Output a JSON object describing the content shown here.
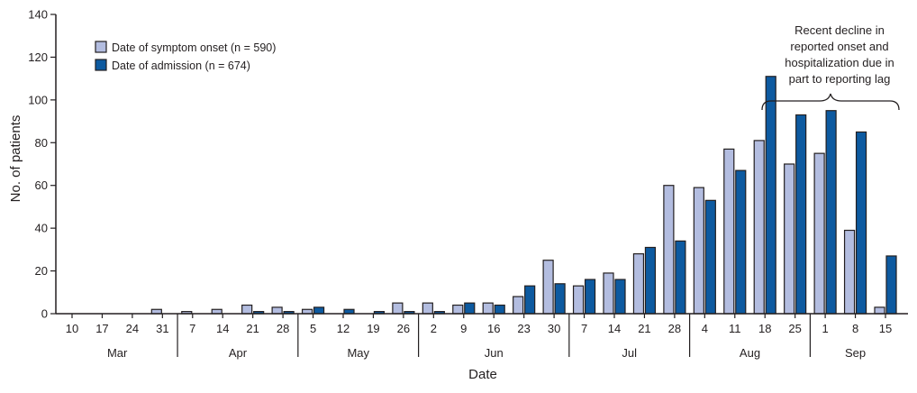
{
  "chart_data": {
    "type": "bar",
    "title": "",
    "xlabel": "Date",
    "ylabel": "No. of patients",
    "ylim": [
      0,
      140
    ],
    "yticks": [
      0,
      20,
      40,
      60,
      80,
      100,
      120,
      140
    ],
    "categories": [
      "10",
      "17",
      "24",
      "31",
      "7",
      "14",
      "21",
      "28",
      "5",
      "12",
      "19",
      "26",
      "2",
      "9",
      "16",
      "23",
      "30",
      "7",
      "14",
      "21",
      "28",
      "4",
      "11",
      "18",
      "25",
      "1",
      "8",
      "15"
    ],
    "month_groups": [
      {
        "label": "Mar",
        "count": 4
      },
      {
        "label": "Apr",
        "count": 4
      },
      {
        "label": "May",
        "count": 4
      },
      {
        "label": "Jun",
        "count": 5
      },
      {
        "label": "Jul",
        "count": 4
      },
      {
        "label": "Aug",
        "count": 4
      },
      {
        "label": "Sep",
        "count": 3
      }
    ],
    "series": [
      {
        "name": "Date of symptom onset",
        "n_label": "(n = 590)",
        "color": "#b3bde0",
        "values": [
          0,
          0,
          0,
          2,
          1,
          2,
          4,
          3,
          2,
          0,
          0,
          5,
          5,
          4,
          5,
          8,
          25,
          13,
          19,
          28,
          60,
          59,
          77,
          81,
          70,
          75,
          39,
          3
        ]
      },
      {
        "name": "Date of admission",
        "n_label": "(n = 674)",
        "color": "#0d5aa0",
        "values": [
          0,
          0,
          0,
          0,
          0,
          0,
          1,
          1,
          3,
          2,
          1,
          1,
          1,
          5,
          4,
          13,
          14,
          16,
          16,
          31,
          34,
          53,
          67,
          111,
          93,
          95,
          85,
          27
        ]
      }
    ],
    "legend_position": "top-left",
    "grid": false,
    "annotation": {
      "lines": [
        "Recent decline in",
        "reported onset and",
        "hospitalization due in",
        "part to reporting lag"
      ]
    }
  }
}
